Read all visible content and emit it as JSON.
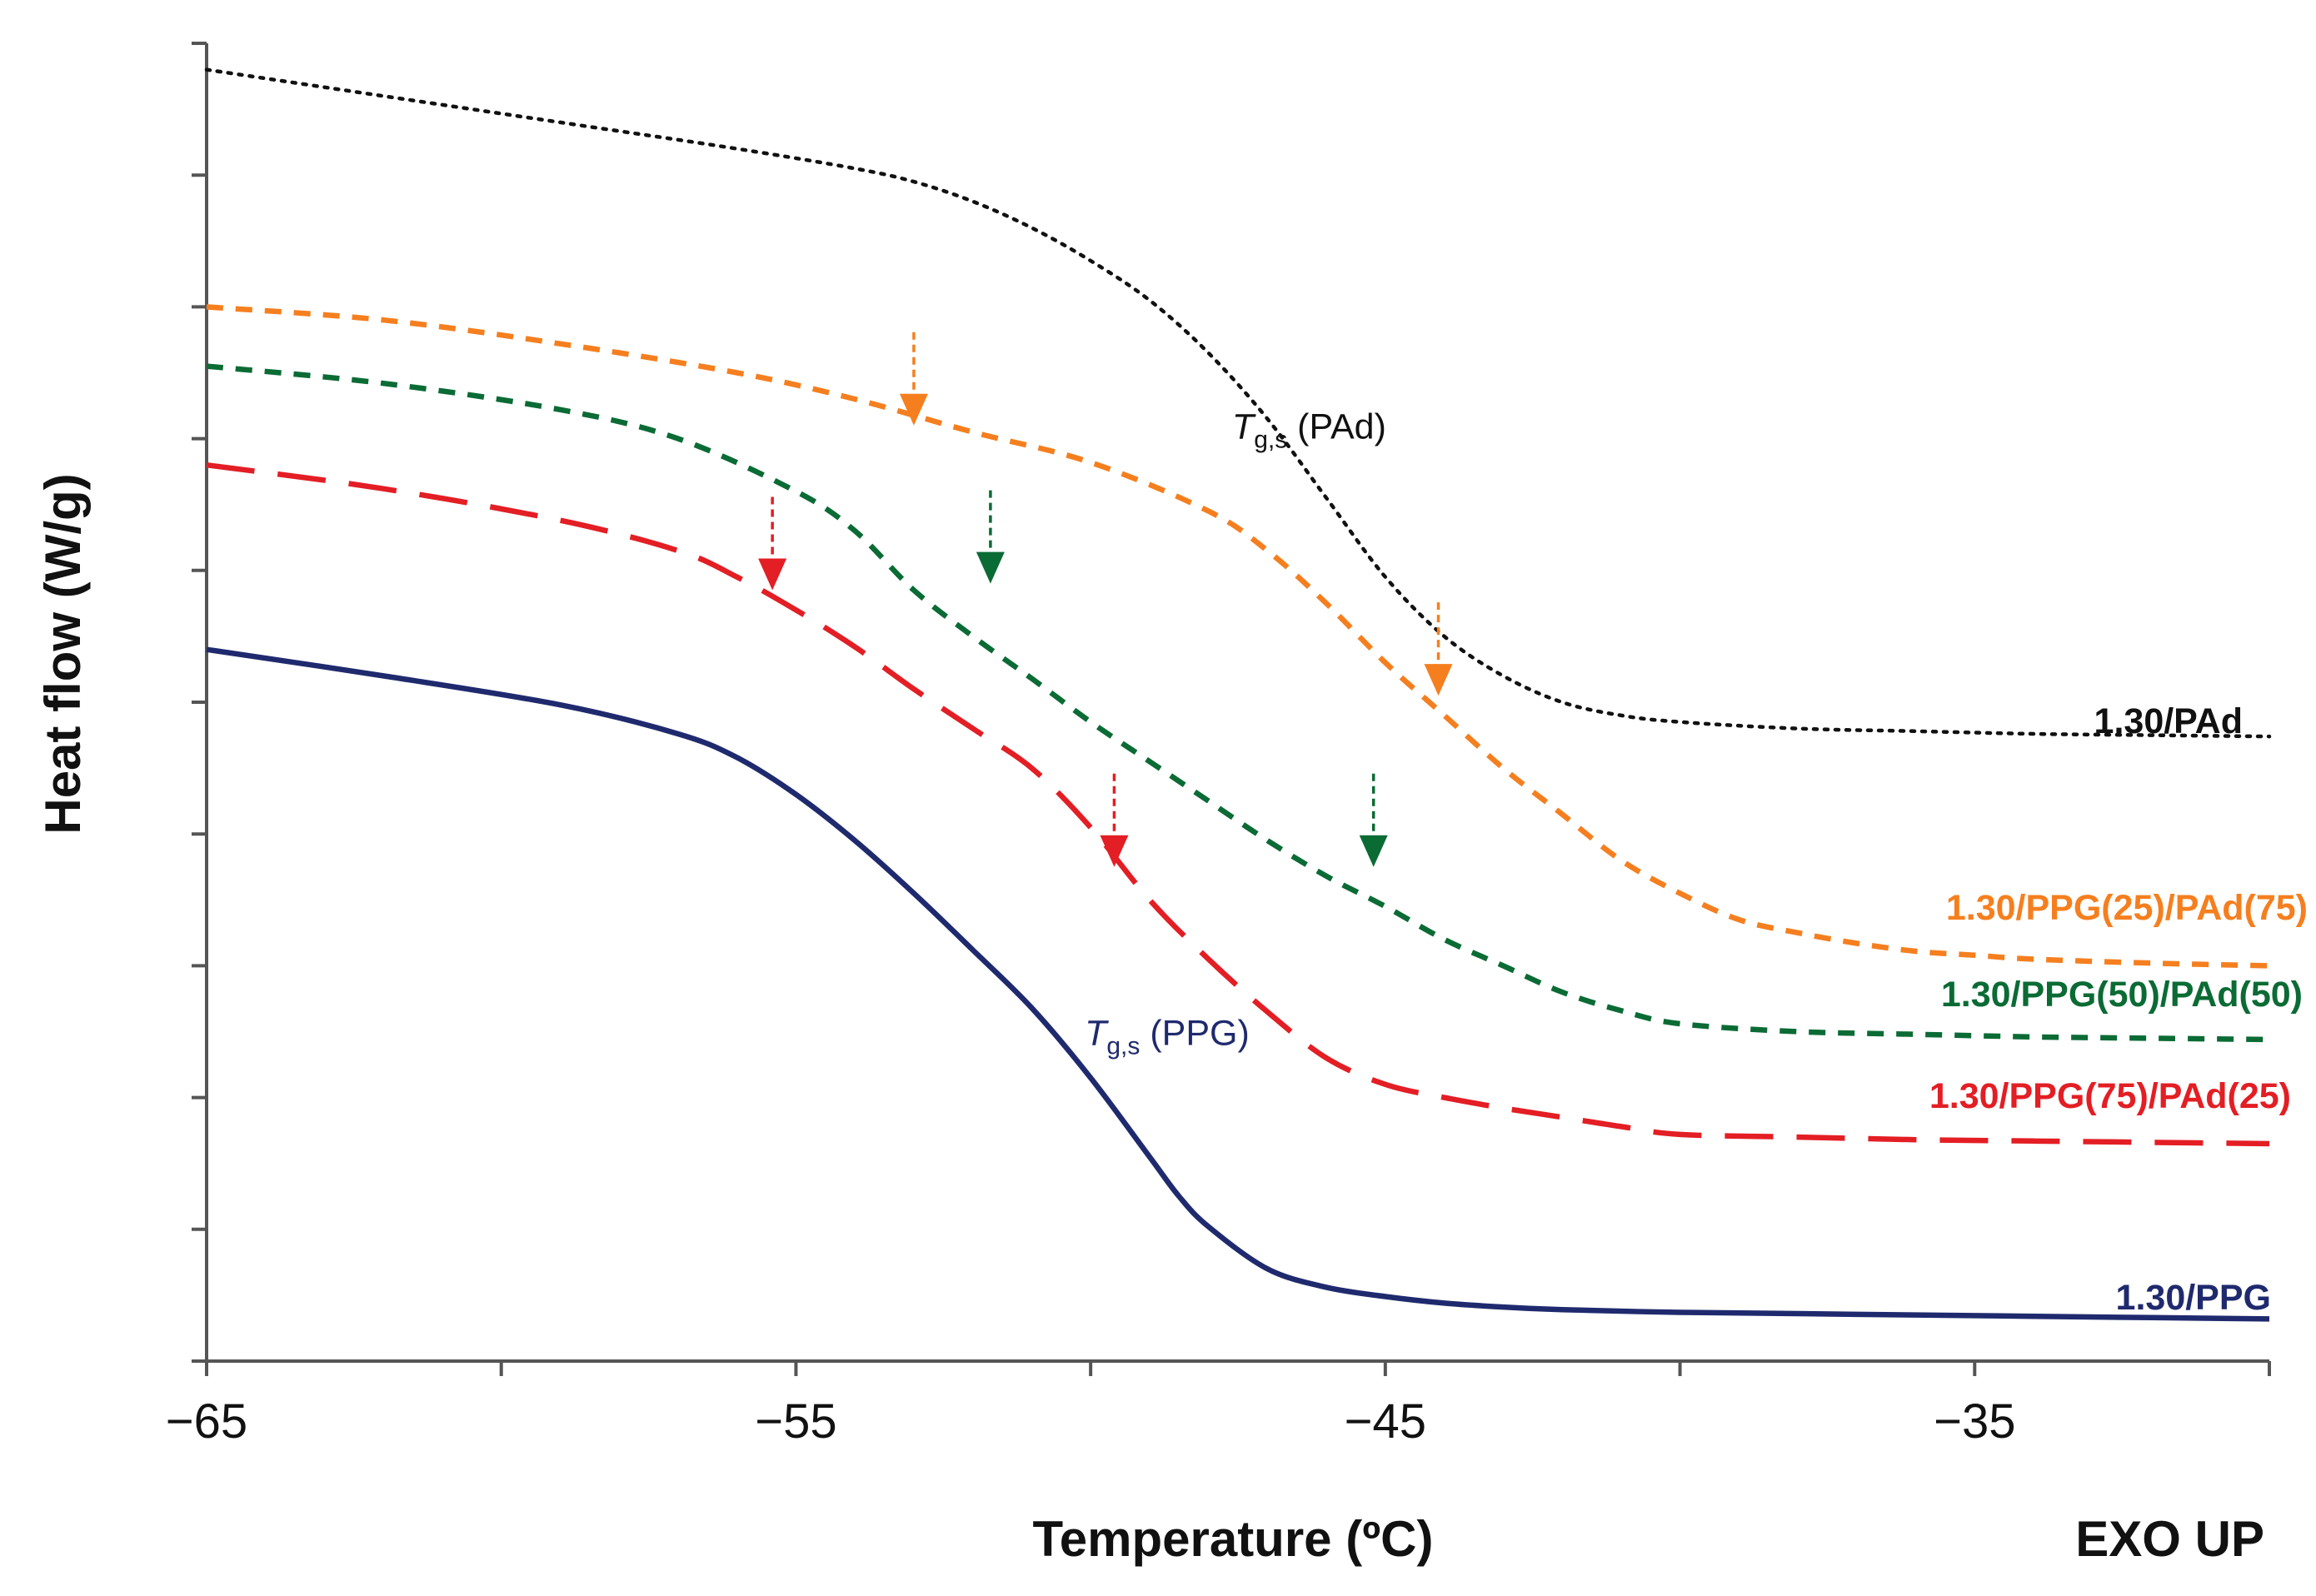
{
  "chart_data": {
    "type": "line",
    "title": "",
    "xlabel": "Temperature (ºC)",
    "ylabel": "Heat flow (W/g)",
    "corner_note": "EXO UP",
    "xlim": [
      -65,
      -30
    ],
    "ylim": [
      0,
      10
    ],
    "y_ticks": [
      0,
      1,
      2,
      3,
      4,
      5,
      6,
      7,
      8,
      9,
      10
    ],
    "x_ticks": [
      {
        "value": -65,
        "label": "−65"
      },
      {
        "value": -55,
        "label": "−55"
      },
      {
        "value": -45,
        "label": "−45"
      },
      {
        "value": -35,
        "label": "−35"
      }
    ],
    "series": [
      {
        "name": "1.30/PAd",
        "color": "#111111",
        "style": "dotted",
        "x": [
          -65,
          -62,
          -59,
          -56,
          -54,
          -53,
          -52,
          -51,
          -50,
          -49,
          -48,
          -47,
          -46,
          -45,
          -44,
          -43,
          -42,
          -41,
          -40,
          -38,
          -36,
          -34,
          -32,
          -30
        ],
        "y": [
          9.8,
          9.6,
          9.4,
          9.2,
          9.05,
          8.95,
          8.8,
          8.6,
          8.35,
          8.05,
          7.65,
          7.15,
          6.55,
          5.95,
          5.5,
          5.2,
          5.0,
          4.9,
          4.85,
          4.8,
          4.78,
          4.76,
          4.75,
          4.74
        ]
      },
      {
        "name": "1.30/PPG(25)/PAd(75)",
        "color": "#F57F1F",
        "style": "short-dash",
        "x": [
          -65,
          -62,
          -59,
          -56,
          -54,
          -52,
          -50,
          -48,
          -47,
          -46,
          -45,
          -44,
          -43,
          -42,
          -41,
          -40,
          -39,
          -38,
          -37,
          -36,
          -35,
          -34,
          -32,
          -30
        ],
        "y": [
          8.0,
          7.9,
          7.72,
          7.5,
          7.3,
          7.05,
          6.82,
          6.45,
          6.15,
          5.75,
          5.3,
          4.9,
          4.5,
          4.15,
          3.8,
          3.55,
          3.35,
          3.25,
          3.17,
          3.11,
          3.08,
          3.05,
          3.02,
          3.0
        ]
      },
      {
        "name": "1.30/PPG(50)/PAd(50)",
        "color": "#0B6B35",
        "style": "short-dash",
        "x": [
          -65,
          -62,
          -59,
          -57,
          -55,
          -54,
          -53,
          -52,
          -51,
          -50,
          -49,
          -48,
          -47,
          -46,
          -45,
          -44,
          -43,
          -42,
          -41,
          -40,
          -38,
          -36,
          -34,
          -32,
          -30
        ],
        "y": [
          7.55,
          7.42,
          7.22,
          7.0,
          6.6,
          6.3,
          5.85,
          5.5,
          5.18,
          4.85,
          4.55,
          4.25,
          3.95,
          3.68,
          3.45,
          3.2,
          3.0,
          2.8,
          2.66,
          2.56,
          2.5,
          2.48,
          2.46,
          2.45,
          2.44
        ]
      },
      {
        "name": "1.30/PPG(75)/PAd(25)",
        "color": "#E31E24",
        "style": "long-dash",
        "x": [
          -65,
          -62,
          -59,
          -57,
          -56,
          -55,
          -54,
          -53,
          -52,
          -51,
          -50,
          -49,
          -48,
          -47,
          -46,
          -45,
          -44,
          -43,
          -42,
          -41,
          -40,
          -38,
          -36,
          -34,
          -32,
          -30
        ],
        "y": [
          6.8,
          6.62,
          6.38,
          6.15,
          5.95,
          5.7,
          5.42,
          5.1,
          4.8,
          4.5,
          4.05,
          3.5,
          3.05,
          2.65,
          2.3,
          2.1,
          2.0,
          1.92,
          1.85,
          1.78,
          1.72,
          1.7,
          1.68,
          1.67,
          1.66,
          1.65
        ]
      },
      {
        "name": "1.30/PPG",
        "color": "#1F2A6E",
        "style": "solid",
        "x": [
          -65,
          -62,
          -59,
          -57,
          -56,
          -55,
          -54,
          -53,
          -52,
          -51,
          -50,
          -49,
          -48.5,
          -48,
          -47,
          -46,
          -45,
          -44,
          -43,
          -42,
          -40,
          -38,
          -36,
          -34,
          -32,
          -30
        ],
        "y": [
          5.4,
          5.2,
          4.98,
          4.76,
          4.58,
          4.3,
          3.95,
          3.55,
          3.12,
          2.68,
          2.15,
          1.55,
          1.25,
          1.02,
          0.7,
          0.56,
          0.49,
          0.44,
          0.41,
          0.39,
          0.37,
          0.36,
          0.35,
          0.34,
          0.33,
          0.32
        ]
      }
    ],
    "arrows": [
      {
        "series": "1.30/PPG(25)/PAd(75)",
        "x": -53,
        "y": 7.1,
        "color": "#F57F1F"
      },
      {
        "series": "1.30/PPG(25)/PAd(75)",
        "x": -44.1,
        "y": 5.05,
        "color": "#F57F1F"
      },
      {
        "series": "1.30/PPG(50)/PAd(50)",
        "x": -51.7,
        "y": 5.9,
        "color": "#0B6B35"
      },
      {
        "series": "1.30/PPG(50)/PAd(50)",
        "x": -45.2,
        "y": 3.75,
        "color": "#0B6B35"
      },
      {
        "series": "1.30/PPG(75)/PAd(25)",
        "x": -55.4,
        "y": 5.85,
        "color": "#E31E24"
      },
      {
        "series": "1.30/PPG(75)/PAd(25)",
        "x": -49.6,
        "y": 3.75,
        "color": "#E31E24"
      }
    ],
    "annotations": [
      {
        "main": "T",
        "sub": "g,s",
        "rest": " (PAd)",
        "color": "#111111",
        "x": -47.6,
        "y": 7.0
      },
      {
        "main": "T",
        "sub": "g,s",
        "rest": " (PPG)",
        "color": "#1F2A6E",
        "x": -50.1,
        "y": 2.4
      }
    ]
  }
}
